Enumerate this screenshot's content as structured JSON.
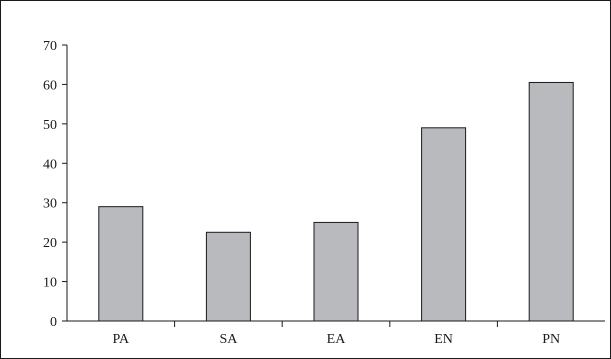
{
  "chart_data": {
    "type": "bar",
    "categories": [
      "PA",
      "SA",
      "EA",
      "EN",
      "PN"
    ],
    "values": [
      29,
      22.5,
      25,
      49,
      60.5
    ],
    "title": "",
    "xlabel": "",
    "ylabel": "",
    "ylim": [
      0,
      70
    ],
    "yticks": [
      0,
      10,
      20,
      30,
      40,
      50,
      60,
      70
    ],
    "grid": false,
    "legend": "none",
    "colors": {
      "bar_fill": "#b9babe",
      "bar_stroke": "#1a1a1a",
      "axis": "#1a1a1a"
    }
  }
}
